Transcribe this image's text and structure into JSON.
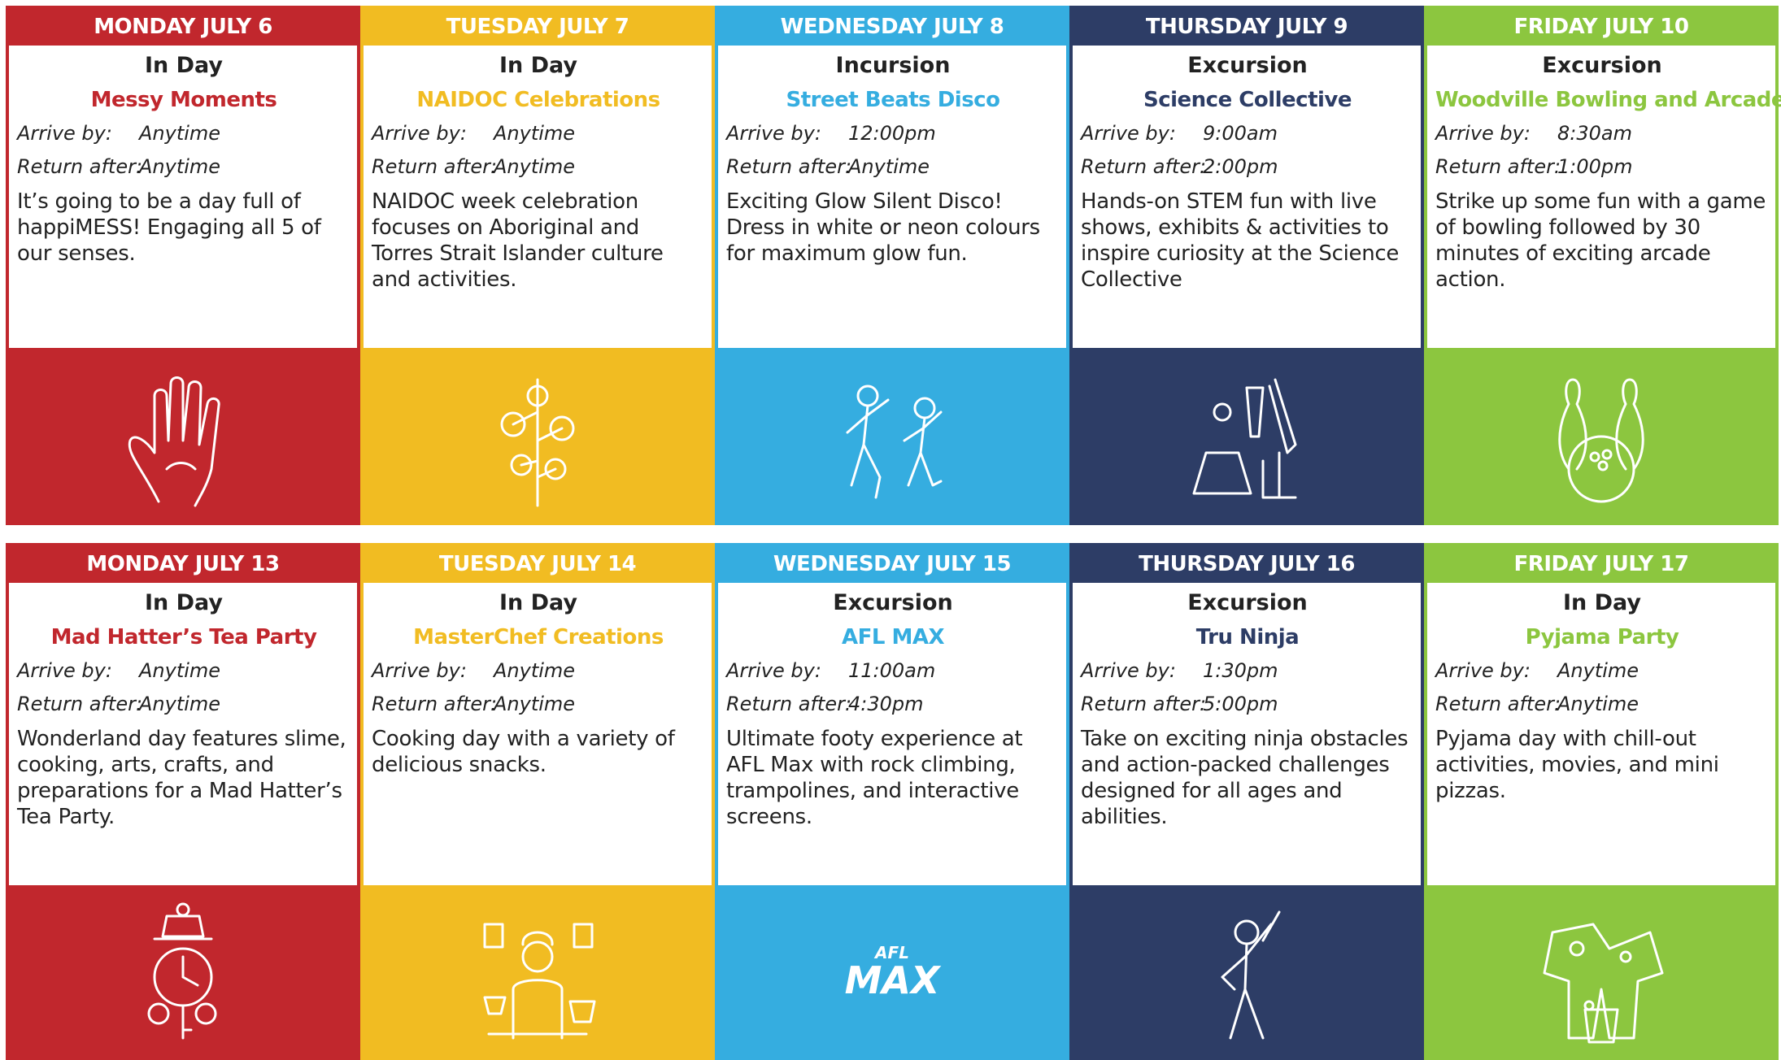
{
  "days": [
    {
      "header": "MONDAY JULY 6",
      "type": "In Day",
      "title": "Messy Moments",
      "arrive_label": "Arrive by:",
      "arrive": "Anytime",
      "return_label": "Return after:",
      "return": "Anytime",
      "description": "It’s going to be a day full of happiMESS! Engaging all 5 of our senses."
    },
    {
      "header": "TUESDAY JULY 7",
      "type": "In Day",
      "title": "NAIDOC Celebrations",
      "arrive_label": "Arrive by:",
      "arrive": "Anytime",
      "return_label": "Return after:",
      "return": "Anytime",
      "description": "NAIDOC week celebration focuses on Aboriginal and Torres Strait Islander culture and activities."
    },
    {
      "header": "WEDNESDAY JULY 8",
      "type": "Incursion",
      "title": "Street Beats Disco",
      "arrive_label": "Arrive by:",
      "arrive": "12:00pm",
      "return_label": "Return after:",
      "return": "Anytime",
      "description": "Exciting Glow Silent Disco! Dress in white or neon colours for maximum glow fun."
    },
    {
      "header": "THURSDAY JULY 9",
      "type": "Excursion",
      "title": "Science Collective",
      "arrive_label": "Arrive by:",
      "arrive": "9:00am",
      "return_label": "Return after:",
      "return": "2:00pm",
      "description": "Hands-on STEM fun with live shows, exhibits & activities to inspire curiosity at the Science Collective"
    },
    {
      "header": "FRIDAY JULY 10",
      "type": "Excursion",
      "title": "Woodville Bowling and Arcade",
      "arrive_label": "Arrive by:",
      "arrive": "8:30am",
      "return_label": "Return after:",
      "return": "1:00pm",
      "description": "Strike up some fun with a game of bowling followed by 30 minutes of exciting arcade action."
    },
    {
      "header": "MONDAY JULY 13",
      "type": "In Day",
      "title": "Mad Hatter’s Tea Party",
      "arrive_label": "Arrive by:",
      "arrive": "Anytime",
      "return_label": "Return after:",
      "return": "Anytime",
      "description": "Wonderland day features slime, cooking, arts, crafts, and preparations for a Mad Hatter’s Tea Party."
    },
    {
      "header": "TUESDAY JULY 14",
      "type": "In Day",
      "title": "MasterChef Creations",
      "arrive_label": "Arrive by:",
      "arrive": "Anytime",
      "return_label": "Return after:",
      "return": "Anytime",
      "description": "Cooking day with a variety of delicious snacks."
    },
    {
      "header": "WEDNESDAY JULY 15",
      "type": "Excursion",
      "title": "AFL MAX",
      "arrive_label": "Arrive by:",
      "arrive": "11:00am",
      "return_label": "Return after:",
      "return": "4:30pm",
      "description": "Ultimate footy experience at AFL Max with rock climbing, trampolines, and interactive screens.",
      "logo": [
        "AFL",
        "MAX"
      ]
    },
    {
      "header": "THURSDAY JULY 16",
      "type": "Excursion",
      "title": "Tru Ninja",
      "arrive_label": "Arrive by:",
      "arrive": "1:30pm",
      "return_label": "Return after:",
      "return": "5:00pm",
      "description": "Take on exciting ninja obstacles and action-packed challenges designed for all ages and abilities."
    },
    {
      "header": "FRIDAY JULY 17",
      "type": "In Day",
      "title": "Pyjama Party",
      "arrive_label": "Arrive by:",
      "arrive": "Anytime",
      "return_label": "Return after:",
      "return": "Anytime",
      "description": "Pyjama day with chill-out activities, movies, and mini pizzas."
    }
  ]
}
